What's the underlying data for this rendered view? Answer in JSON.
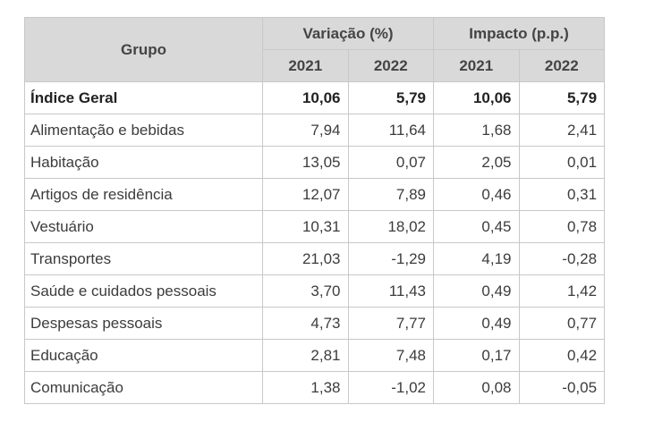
{
  "table": {
    "header": {
      "group": "Grupo",
      "variation": "Variação (%)",
      "impact": "Impacto (p.p.)",
      "years": [
        "2021",
        "2022",
        "2021",
        "2022"
      ]
    },
    "rows": [
      {
        "group": "Índice Geral",
        "var_2021": "10,06",
        "var_2022": "5,79",
        "imp_2021": "10,06",
        "imp_2022": "5,79"
      },
      {
        "group": "Alimentação e bebidas",
        "var_2021": "7,94",
        "var_2022": "11,64",
        "imp_2021": "1,68",
        "imp_2022": "2,41"
      },
      {
        "group": "Habitação",
        "var_2021": "13,05",
        "var_2022": "0,07",
        "imp_2021": "2,05",
        "imp_2022": "0,01"
      },
      {
        "group": "Artigos de residência",
        "var_2021": "12,07",
        "var_2022": "7,89",
        "imp_2021": "0,46",
        "imp_2022": "0,31"
      },
      {
        "group": "Vestuário",
        "var_2021": "10,31",
        "var_2022": "18,02",
        "imp_2021": "0,45",
        "imp_2022": "0,78"
      },
      {
        "group": "Transportes",
        "var_2021": "21,03",
        "var_2022": "-1,29",
        "imp_2021": "4,19",
        "imp_2022": "-0,28"
      },
      {
        "group": "Saúde e cuidados pessoais",
        "var_2021": "3,70",
        "var_2022": "11,43",
        "imp_2021": "0,49",
        "imp_2022": "1,42"
      },
      {
        "group": "Despesas pessoais",
        "var_2021": "4,73",
        "var_2022": "7,77",
        "imp_2021": "0,49",
        "imp_2022": "0,77"
      },
      {
        "group": "Educação",
        "var_2021": "2,81",
        "var_2022": "7,48",
        "imp_2021": "0,17",
        "imp_2022": "0,42"
      },
      {
        "group": "Comunicação",
        "var_2021": "1,38",
        "var_2022": "-1,02",
        "imp_2021": "0,08",
        "imp_2022": "-0,05"
      }
    ]
  }
}
